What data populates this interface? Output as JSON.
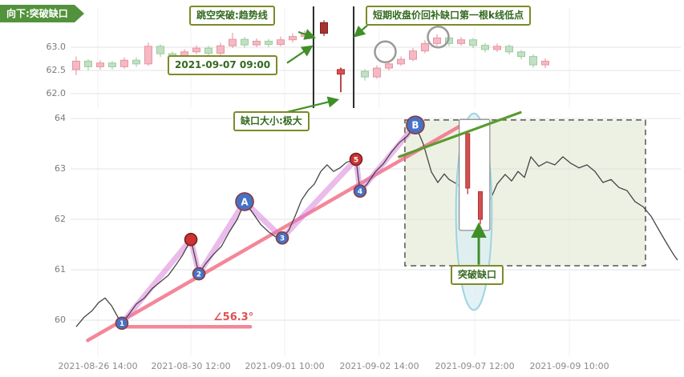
{
  "colors": {
    "up_pink": "#f5b9c3",
    "up_pink_stroke": "#e795a3",
    "down_green": "#c2e0c3",
    "down_green_stroke": "#9bcc9f",
    "dark_red": "#a83232",
    "bright_red": "#d94f4f",
    "trend_pink": "#f0697f",
    "trend_green": "#5a9b2e",
    "zigzag": "#d878d8",
    "price_line": "#454545",
    "annotation_border": "#7d8a27",
    "annotation_text": "#33691e",
    "ribbon_bg": "#53923c",
    "box_fill": "#dfe6cd",
    "ellipse_fill": "#d9eef3",
    "ellipse_stroke": "#9fd4de",
    "arrow_green": "#3f8f29",
    "pivot_blue": "#4671c6",
    "pivot_red": "#cc3333",
    "pivot_stroke": "#8a3a3a",
    "angle_red": "#e05252",
    "axis_text": "#7a7a7a",
    "grid": "#e3e3e3"
  },
  "annotations": {
    "ribbon_top_left": "向下:突破缺口",
    "callout_gap_breakout": "跳空突破:趋势线",
    "callout_datetime": "2021-09-07 09:00",
    "callout_short_term": "短期收盘价回补缺口第一根k线低点",
    "callout_gap_size": "缺口大小:极大",
    "callout_breakout_gap": "突破缺口",
    "angle_label": "∠56.3°"
  },
  "x_axis_labels": [
    "2021-08-26 14:00",
    "2021-08-30 12:00",
    "2021-09-01 10:00",
    "2021-09-02 14:00",
    "2021-09-07 12:00",
    "2021-09-09 10:00"
  ],
  "top_y_ticks": [
    "63.0",
    "62.5",
    "62.0"
  ],
  "bottom_y_ticks": [
    "64",
    "63",
    "62",
    "61",
    "60"
  ],
  "chart_data": [
    {
      "type": "candlestick",
      "panel": "top",
      "y_ticks": [
        63.0,
        62.5,
        62.0
      ],
      "candles": [
        [
          0,
          62.52,
          62.7,
          62.8,
          62.4,
          "p"
        ],
        [
          1,
          62.7,
          62.58,
          62.74,
          62.5,
          "g"
        ],
        [
          2,
          62.58,
          62.66,
          62.72,
          62.52,
          "p"
        ],
        [
          3,
          62.66,
          62.58,
          62.7,
          62.52,
          "g"
        ],
        [
          4,
          62.58,
          62.72,
          62.78,
          62.54,
          "p"
        ],
        [
          5,
          62.72,
          62.64,
          62.78,
          62.58,
          "g"
        ],
        [
          6,
          62.64,
          63.02,
          63.1,
          62.6,
          "p"
        ],
        [
          7,
          63.02,
          62.86,
          63.06,
          62.79,
          "g"
        ],
        [
          8,
          62.86,
          62.76,
          62.91,
          62.7,
          "g"
        ],
        [
          9,
          62.76,
          62.9,
          62.96,
          62.72,
          "p"
        ],
        [
          10,
          62.9,
          62.98,
          63.04,
          62.85,
          "p"
        ],
        [
          11,
          62.98,
          62.87,
          63.03,
          62.81,
          "g"
        ],
        [
          12,
          62.87,
          63.03,
          63.1,
          62.83,
          "p"
        ],
        [
          13,
          63.03,
          63.17,
          63.31,
          62.98,
          "p"
        ],
        [
          14,
          63.17,
          63.05,
          63.22,
          62.99,
          "g"
        ],
        [
          15,
          63.05,
          63.13,
          63.19,
          63.0,
          "p"
        ],
        [
          16,
          63.13,
          63.06,
          63.18,
          63.0,
          "g"
        ],
        [
          17,
          63.06,
          63.16,
          63.23,
          63.02,
          "p"
        ],
        [
          18,
          63.16,
          63.23,
          63.3,
          63.1,
          "p"
        ],
        [
          19,
          63.23,
          63.3,
          63.36,
          63.16,
          "p"
        ],
        [
          20.6,
          63.3,
          63.53,
          63.58,
          63.24,
          "r"
        ],
        [
          22,
          62.52,
          62.42,
          62.56,
          62.03,
          "R"
        ],
        [
          24,
          62.48,
          62.36,
          62.53,
          62.28,
          "g"
        ],
        [
          25,
          62.36,
          62.55,
          62.61,
          62.32,
          "p"
        ],
        [
          26,
          62.55,
          62.64,
          62.7,
          62.5,
          "p"
        ],
        [
          27,
          62.64,
          62.74,
          62.8,
          62.6,
          "p"
        ],
        [
          28,
          62.74,
          62.92,
          62.98,
          62.7,
          "p"
        ],
        [
          29,
          62.92,
          63.08,
          63.15,
          62.87,
          "p"
        ],
        [
          30,
          63.08,
          63.2,
          63.28,
          63.03,
          "p"
        ],
        [
          31,
          63.2,
          63.08,
          63.25,
          63.02,
          "g"
        ],
        [
          32,
          63.08,
          63.16,
          63.22,
          63.03,
          "p"
        ],
        [
          33,
          63.16,
          63.04,
          63.2,
          62.98,
          "g"
        ],
        [
          34,
          63.04,
          62.95,
          63.09,
          62.89,
          "g"
        ],
        [
          35,
          62.95,
          63.02,
          63.08,
          62.9,
          "p"
        ],
        [
          36,
          63.02,
          62.9,
          63.06,
          62.84,
          "g"
        ],
        [
          37,
          62.9,
          62.8,
          62.94,
          62.74,
          "g"
        ],
        [
          38,
          62.8,
          62.62,
          62.85,
          62.56,
          "g"
        ],
        [
          39,
          62.62,
          62.7,
          62.76,
          62.55,
          "p"
        ]
      ],
      "vlines": [
        {
          "t": 19.73
        },
        {
          "t": 23.07
        }
      ],
      "highlight_circles": [
        {
          "t": 25.7,
          "price": 62.9
        },
        {
          "t": 30.1,
          "price": 63.22
        }
      ],
      "arrows": [
        {
          "from": [
            18.47,
            63.33
          ],
          "to": [
            19.67,
            63.22
          ]
        },
        {
          "from": [
            17.53,
            62.66
          ],
          "to": [
            19.47,
            63.0
          ]
        },
        {
          "from": [
            24.2,
            63.47
          ],
          "to": [
            23.27,
            63.26
          ]
        },
        {
          "from": [
            17.0,
            61.57
          ],
          "to": [
            21.6,
            61.86
          ]
        }
      ]
    },
    {
      "type": "line",
      "panel": "bottom",
      "ylim": [
        59.5,
        64.1
      ],
      "y_ticks": [
        64,
        63,
        62,
        61,
        60
      ],
      "points": [
        [
          0,
          59.87
        ],
        [
          0.76,
          60.06
        ],
        [
          1.52,
          60.19
        ],
        [
          2.13,
          60.35
        ],
        [
          2.74,
          60.44
        ],
        [
          3.34,
          60.29
        ],
        [
          3.95,
          60.06
        ],
        [
          4.33,
          59.94
        ],
        [
          4.94,
          60.1
        ],
        [
          5.7,
          60.32
        ],
        [
          6.46,
          60.44
        ],
        [
          7.22,
          60.63
        ],
        [
          7.98,
          60.76
        ],
        [
          8.74,
          60.89
        ],
        [
          9.5,
          61.11
        ],
        [
          10.11,
          61.3
        ],
        [
          10.87,
          61.6
        ],
        [
          11.63,
          60.92
        ],
        [
          12.23,
          61.11
        ],
        [
          12.99,
          61.3
        ],
        [
          13.75,
          61.46
        ],
        [
          14.51,
          61.75
        ],
        [
          15.27,
          62.0
        ],
        [
          15.96,
          62.35
        ],
        [
          16.72,
          62.13
        ],
        [
          17.48,
          61.9
        ],
        [
          18.24,
          61.75
        ],
        [
          18.92,
          61.65
        ],
        [
          19.53,
          61.63
        ],
        [
          20.14,
          61.78
        ],
        [
          20.74,
          62.06
        ],
        [
          21.35,
          62.38
        ],
        [
          21.96,
          62.57
        ],
        [
          22.57,
          62.7
        ],
        [
          23.18,
          62.95
        ],
        [
          23.78,
          63.08
        ],
        [
          24.39,
          62.95
        ],
        [
          25.0,
          63.02
        ],
        [
          25.61,
          63.13
        ],
        [
          26.52,
          63.19
        ],
        [
          26.9,
          62.56
        ],
        [
          27.58,
          62.7
        ],
        [
          28.34,
          62.94
        ],
        [
          29.1,
          63.1
        ],
        [
          29.86,
          63.33
        ],
        [
          30.62,
          63.52
        ],
        [
          31.38,
          63.65
        ],
        [
          32.14,
          63.87
        ],
        [
          32.9,
          63.49
        ],
        [
          33.66,
          62.94
        ],
        [
          34.27,
          62.73
        ],
        [
          34.88,
          62.9
        ],
        [
          35.33,
          62.79
        ],
        [
          36.09,
          62.7
        ],
        [
          36.85,
          62.54
        ],
        [
          37.61,
          62.38
        ],
        [
          38.37,
          62.41
        ],
        [
          39.29,
          62.41
        ],
        [
          39.89,
          62.7
        ],
        [
          40.65,
          62.89
        ],
        [
          41.26,
          62.76
        ],
        [
          41.87,
          62.95
        ],
        [
          42.48,
          62.83
        ],
        [
          43.09,
          63.24
        ],
        [
          43.84,
          63.05
        ],
        [
          44.6,
          63.14
        ],
        [
          45.36,
          63.08
        ],
        [
          46.12,
          63.24
        ],
        [
          46.88,
          63.11
        ],
        [
          47.64,
          63.02
        ],
        [
          48.4,
          63.08
        ],
        [
          49.16,
          62.95
        ],
        [
          49.92,
          62.73
        ],
        [
          50.68,
          62.79
        ],
        [
          51.44,
          62.63
        ],
        [
          52.2,
          62.57
        ],
        [
          52.96,
          62.35
        ],
        [
          53.72,
          62.25
        ],
        [
          54.48,
          62.06
        ],
        [
          55.24,
          61.78
        ],
        [
          56.0,
          61.51
        ],
        [
          56.61,
          61.3
        ],
        [
          56.99,
          61.19
        ]
      ],
      "zigzag": [
        [
          4.33,
          59.94
        ],
        [
          10.87,
          61.6
        ],
        [
          11.63,
          60.92
        ],
        [
          15.96,
          62.35
        ],
        [
          19.53,
          61.63
        ],
        [
          26.52,
          63.19
        ],
        [
          26.9,
          62.56
        ],
        [
          32.14,
          63.87
        ]
      ],
      "pivots": [
        {
          "t": 4.33,
          "price": 59.94,
          "label": "1",
          "style": "blue",
          "size": "small"
        },
        {
          "t": 10.87,
          "price": 61.6,
          "label": "",
          "style": "red",
          "size": "small"
        },
        {
          "t": 11.63,
          "price": 60.92,
          "label": "2",
          "style": "blue",
          "size": "small"
        },
        {
          "t": 15.96,
          "price": 62.35,
          "label": "A",
          "style": "blue",
          "size": "large"
        },
        {
          "t": 19.53,
          "price": 61.63,
          "label": "3",
          "style": "blue",
          "size": "small"
        },
        {
          "t": 26.52,
          "price": 63.19,
          "label": "5",
          "style": "red",
          "size": "small"
        },
        {
          "t": 26.9,
          "price": 62.56,
          "label": "4",
          "style": "blue",
          "size": "small"
        },
        {
          "t": 32.14,
          "price": 63.87,
          "label": "B",
          "style": "blue",
          "size": "large"
        }
      ],
      "trend_line_pink": {
        "from": [
          1.1,
          59.6
        ],
        "to": [
          36.3,
          63.84
        ]
      },
      "baseline_pink": {
        "from": [
          4.33,
          59.87
        ],
        "to": [
          16.5,
          59.87
        ]
      },
      "trend_line_green": {
        "from": [
          30.6,
          63.24
        ],
        "to": [
          42.1,
          64.12
        ]
      },
      "angle_deg": 56.3,
      "dashed_box": {
        "t1": 31.15,
        "t2": 53.95,
        "p1": 61.08,
        "p2": 63.97
      },
      "ellipse": {
        "t": 37.69,
        "price": 62.15,
        "rx_t": 1.7,
        "ry_p": 1.95
      },
      "inset": {
        "rect": {
          "t1": 36.3,
          "t2": 39.2,
          "p1": 61.78,
          "p2": 63.98
        },
        "candles": [
          {
            "t": 37.1,
            "top": 63.7,
            "bottom": 62.62,
            "wick_low": 62.5
          },
          {
            "t": 38.3,
            "top": 62.55,
            "bottom": 62.0,
            "wick_low": 61.9
          }
        ]
      },
      "arrow_up": {
        "from": [
          38.15,
          61.1
        ],
        "to": [
          38.15,
          61.85
        ]
      }
    }
  ]
}
